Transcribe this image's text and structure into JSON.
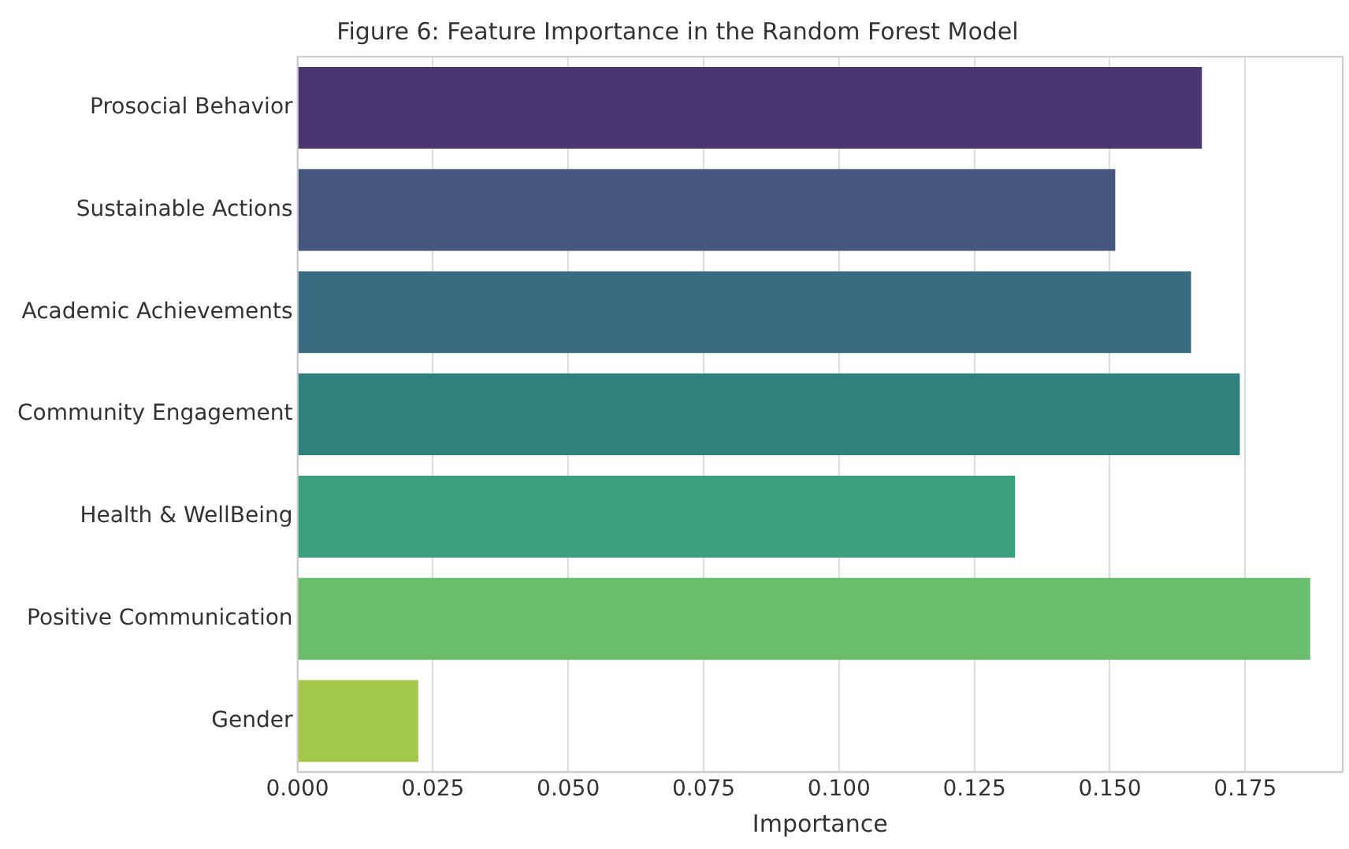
{
  "chart_data": {
    "type": "bar",
    "orientation": "horizontal",
    "title": "Figure 6: Feature Importance in the Random Forest Model",
    "xlabel": "Importance",
    "categories": [
      "Prosocial Behavior",
      "Sustainable Actions",
      "Academic Achievements",
      "Community Engagement",
      "Health & WellBeing",
      "Positive Communication",
      "Gender"
    ],
    "values": [
      0.167,
      0.151,
      0.165,
      0.174,
      0.1325,
      0.187,
      0.0223
    ],
    "colors": [
      "#4a3671",
      "#45577f",
      "#3a6b80",
      "#2e817c",
      "#3b9f7b",
      "#6bbd6e",
      "#a4c84a"
    ],
    "xlim": [
      0,
      0.193
    ],
    "xticks": [
      {
        "value": 0,
        "label": "0.000"
      },
      {
        "value": 0.025,
        "label": "0.025"
      },
      {
        "value": 0.05,
        "label": "0.050"
      },
      {
        "value": 0.075,
        "label": "0.075"
      },
      {
        "value": 0.1,
        "label": "0.100"
      },
      {
        "value": 0.125,
        "label": "0.125"
      },
      {
        "value": 0.15,
        "label": "0.150"
      },
      {
        "value": 0.175,
        "label": "0.175"
      }
    ],
    "grid": "x",
    "legend": false
  }
}
